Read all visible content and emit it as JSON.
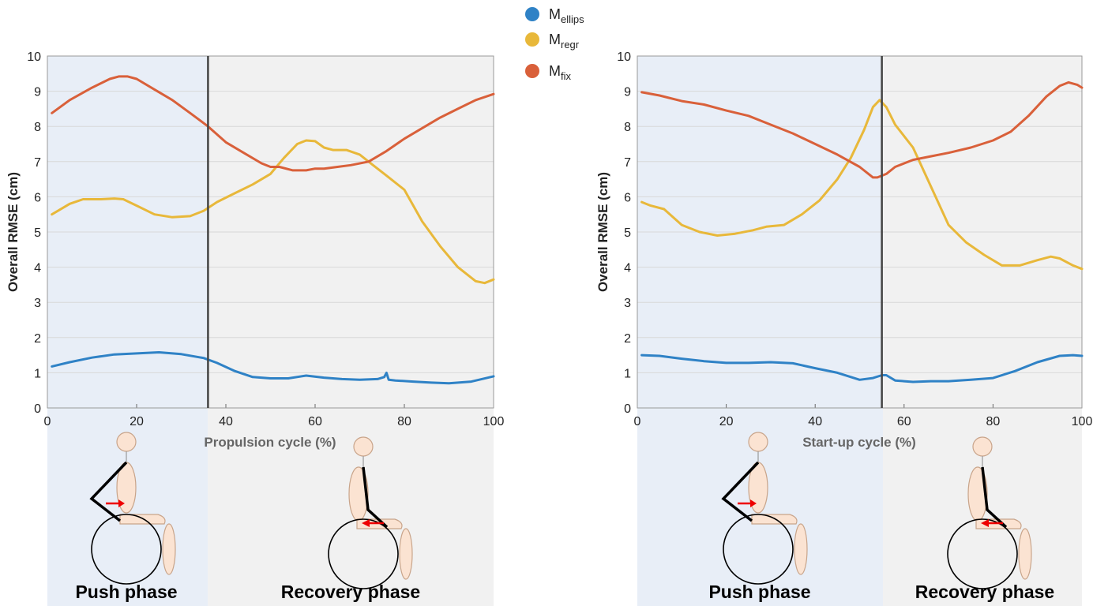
{
  "colors": {
    "ellips": "#2f82c6",
    "regr": "#e8b83a",
    "fix": "#d9603a",
    "push_bg": "#e8eef7",
    "recovery_bg": "#f1f1f1",
    "divider": "#444444"
  },
  "legend": [
    {
      "main": "M",
      "sub": "ellips",
      "color": "#2f82c6"
    },
    {
      "main": "M",
      "sub": "regr",
      "color": "#e8b83a"
    },
    {
      "main": "M",
      "sub": "fix",
      "color": "#d9603a"
    }
  ],
  "phase_labels": {
    "push": "Push phase",
    "recovery": "Recovery phase"
  },
  "chart_data": [
    {
      "type": "line",
      "xlabel": "Propulsion cycle (%)",
      "ylabel": "Overall RMSE (cm)",
      "xlim": [
        0,
        100
      ],
      "ylim": [
        0,
        10
      ],
      "xticks": [
        0,
        20,
        40,
        60,
        80,
        100
      ],
      "yticks": [
        0,
        1,
        2,
        3,
        4,
        5,
        6,
        7,
        8,
        9,
        10
      ],
      "grid": "horizontal",
      "phase_boundary": 36,
      "series": [
        {
          "name": "Mellips",
          "color": "#2f82c6",
          "x": [
            1,
            5,
            10,
            15,
            20,
            25,
            30,
            35,
            38,
            42,
            46,
            50,
            54,
            58,
            62,
            66,
            70,
            74,
            75.5,
            76,
            76.5,
            78,
            82,
            86,
            90,
            95,
            100
          ],
          "y": [
            1.18,
            1.3,
            1.43,
            1.52,
            1.55,
            1.58,
            1.53,
            1.42,
            1.28,
            1.05,
            0.88,
            0.84,
            0.84,
            0.92,
            0.86,
            0.82,
            0.8,
            0.82,
            0.88,
            1.0,
            0.8,
            0.78,
            0.75,
            0.72,
            0.7,
            0.75,
            0.9
          ]
        },
        {
          "name": "Mregr",
          "color": "#e8b83a",
          "x": [
            1,
            5,
            8,
            12,
            15,
            17,
            20,
            24,
            28,
            32,
            35,
            38,
            42,
            46,
            50,
            53,
            56,
            58,
            60,
            62,
            64,
            67,
            70,
            73,
            76,
            80,
            84,
            88,
            92,
            96,
            98,
            100
          ],
          "y": [
            5.5,
            5.8,
            5.93,
            5.93,
            5.95,
            5.93,
            5.75,
            5.5,
            5.42,
            5.45,
            5.6,
            5.85,
            6.1,
            6.35,
            6.65,
            7.1,
            7.5,
            7.6,
            7.58,
            7.4,
            7.33,
            7.33,
            7.2,
            6.9,
            6.6,
            6.2,
            5.3,
            4.6,
            4.0,
            3.6,
            3.55,
            3.65
          ]
        },
        {
          "name": "Mfix",
          "color": "#d9603a",
          "x": [
            1,
            5,
            10,
            14,
            16,
            18,
            20,
            24,
            28,
            32,
            36,
            40,
            44,
            48,
            50,
            52,
            55,
            58,
            60,
            62,
            65,
            68,
            72,
            76,
            80,
            84,
            88,
            92,
            96,
            100
          ],
          "y": [
            8.38,
            8.75,
            9.1,
            9.35,
            9.42,
            9.42,
            9.35,
            9.05,
            8.75,
            8.38,
            8.0,
            7.55,
            7.25,
            6.95,
            6.85,
            6.85,
            6.75,
            6.75,
            6.8,
            6.8,
            6.85,
            6.9,
            7.0,
            7.3,
            7.65,
            7.95,
            8.25,
            8.5,
            8.75,
            8.92
          ]
        }
      ]
    },
    {
      "type": "line",
      "xlabel": "Start-up cycle (%)",
      "ylabel": "Overall RMSE (cm)",
      "xlim": [
        0,
        100
      ],
      "ylim": [
        0,
        10
      ],
      "xticks": [
        0,
        20,
        40,
        60,
        80,
        100
      ],
      "yticks": [
        0,
        1,
        2,
        3,
        4,
        5,
        6,
        7,
        8,
        9,
        10
      ],
      "grid": "horizontal",
      "phase_boundary": 55,
      "series": [
        {
          "name": "Mellips",
          "color": "#2f82c6",
          "x": [
            1,
            5,
            10,
            15,
            20,
            25,
            30,
            35,
            40,
            45,
            50,
            53,
            55,
            56,
            58,
            62,
            66,
            70,
            75,
            80,
            85,
            90,
            95,
            98,
            100
          ],
          "y": [
            1.5,
            1.48,
            1.4,
            1.33,
            1.28,
            1.28,
            1.3,
            1.27,
            1.13,
            1.0,
            0.8,
            0.85,
            0.93,
            0.93,
            0.78,
            0.74,
            0.76,
            0.76,
            0.8,
            0.85,
            1.05,
            1.3,
            1.48,
            1.5,
            1.48
          ]
        },
        {
          "name": "Mregr",
          "color": "#e8b83a",
          "x": [
            1,
            3,
            6,
            10,
            14,
            18,
            22,
            26,
            29,
            33,
            37,
            41,
            45,
            48,
            51,
            53,
            54.5,
            56,
            58,
            62,
            66,
            70,
            74,
            78,
            82,
            86,
            90,
            93,
            95,
            98,
            100
          ],
          "y": [
            5.85,
            5.75,
            5.65,
            5.2,
            5.0,
            4.9,
            4.95,
            5.05,
            5.15,
            5.2,
            5.5,
            5.9,
            6.5,
            7.1,
            7.9,
            8.55,
            8.75,
            8.55,
            8.05,
            7.4,
            6.3,
            5.2,
            4.7,
            4.35,
            4.05,
            4.05,
            4.2,
            4.3,
            4.25,
            4.05,
            3.95
          ]
        },
        {
          "name": "Mfix",
          "color": "#d9603a",
          "x": [
            1,
            5,
            10,
            15,
            20,
            25,
            30,
            35,
            40,
            45,
            50,
            53,
            54,
            56,
            58,
            62,
            66,
            70,
            75,
            80,
            84,
            88,
            92,
            95,
            97,
            99,
            100
          ],
          "y": [
            8.97,
            8.88,
            8.72,
            8.62,
            8.45,
            8.3,
            8.05,
            7.8,
            7.5,
            7.2,
            6.85,
            6.55,
            6.55,
            6.65,
            6.85,
            7.05,
            7.15,
            7.25,
            7.4,
            7.6,
            7.85,
            8.3,
            8.85,
            9.15,
            9.25,
            9.18,
            9.1
          ]
        }
      ]
    }
  ]
}
